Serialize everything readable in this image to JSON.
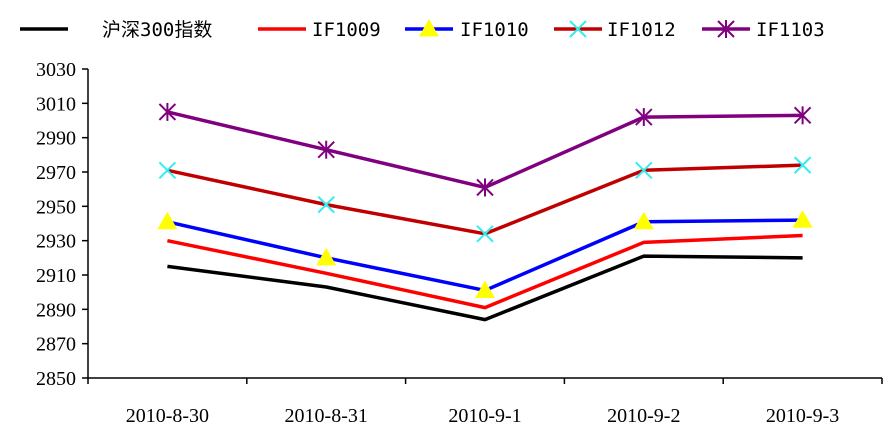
{
  "chart_data": {
    "type": "line",
    "title": "",
    "xlabel": "",
    "ylabel": "",
    "categories": [
      "2010-8-30",
      "2010-8-31",
      "2010-9-1",
      "2010-9-2",
      "2010-9-3"
    ],
    "ylim": [
      2850,
      3030
    ],
    "yticks": [
      2850,
      2870,
      2890,
      2910,
      2930,
      2950,
      2970,
      2990,
      3010,
      3030
    ],
    "grid": false,
    "legend_position": "top",
    "series": [
      {
        "name": "沪深300指数",
        "color": "#000000",
        "marker": "none",
        "values": [
          2915,
          2903,
          2884,
          2921,
          2920
        ]
      },
      {
        "name": "IF1009",
        "color": "#ff0000",
        "marker": "none",
        "values": [
          2930,
          2911,
          2891,
          2929,
          2933
        ]
      },
      {
        "name": "IF1010",
        "color": "#0000ff",
        "marker": "triangle",
        "marker_color": "#ffff00",
        "values": [
          2941,
          2920,
          2901,
          2941,
          2942
        ]
      },
      {
        "name": "IF1012",
        "color": "#c00000",
        "marker": "x",
        "marker_color": "#33eeee",
        "values": [
          2971,
          2951,
          2934,
          2971,
          2974
        ]
      },
      {
        "name": "IF1103",
        "color": "#800080",
        "marker": "star",
        "marker_color": "#800080",
        "values": [
          3005,
          2983,
          2961,
          3002,
          3003
        ]
      }
    ]
  }
}
